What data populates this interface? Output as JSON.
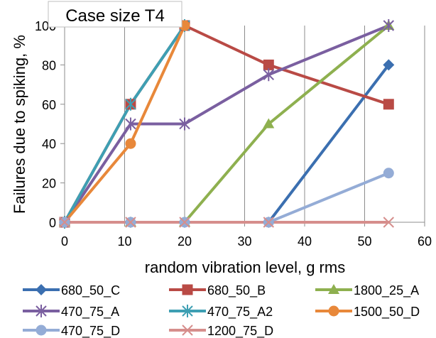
{
  "chart_data": {
    "type": "line",
    "title": "Case size T4",
    "xlabel": "random vibration level, g rms",
    "ylabel": "Failures due to spiking, %",
    "xlim": [
      0,
      60
    ],
    "ylim": [
      0,
      100
    ],
    "xticks": [
      0,
      10,
      20,
      30,
      40,
      50,
      60
    ],
    "yticks": [
      0,
      20,
      40,
      60,
      80,
      100
    ],
    "grid": "vertical only",
    "legend_position": "bottom",
    "series": [
      {
        "name": "680_50_C",
        "color": "#3b6fb0",
        "marker": "diamond",
        "x": [
          0,
          11,
          20,
          34,
          54
        ],
        "y": [
          0,
          0,
          0,
          0,
          80
        ]
      },
      {
        "name": "680_50_B",
        "color": "#b94a45",
        "marker": "square",
        "x": [
          0,
          11,
          20,
          34,
          54
        ],
        "y": [
          0,
          60,
          100,
          80,
          60
        ]
      },
      {
        "name": "1800_25_A",
        "color": "#8eb04f",
        "marker": "triangle",
        "x": [
          0,
          11,
          20,
          34,
          54
        ],
        "y": [
          0,
          0,
          0,
          50,
          100
        ]
      },
      {
        "name": "470_75_A",
        "color": "#7a5fa0",
        "marker": "asterisk",
        "x": [
          0,
          11,
          20,
          34,
          54
        ],
        "y": [
          0,
          50,
          50,
          75,
          100
        ]
      },
      {
        "name": "470_75_A2",
        "color": "#3e9fb3",
        "marker": "asterisk",
        "x": [
          0,
          11,
          20
        ],
        "y": [
          0,
          60,
          100
        ]
      },
      {
        "name": "1500_50_D",
        "color": "#e8883a",
        "marker": "circle",
        "x": [
          0,
          11,
          20
        ],
        "y": [
          0,
          40,
          100
        ]
      },
      {
        "name": "470_75_D",
        "color": "#94acd6",
        "marker": "circle",
        "x": [
          0,
          11,
          20,
          34,
          54
        ],
        "y": [
          0,
          0,
          0,
          0,
          25
        ]
      },
      {
        "name": "1200_75_D",
        "color": "#d68e8c",
        "marker": "x",
        "x": [
          0,
          11,
          20,
          34,
          54
        ],
        "y": [
          0,
          0,
          0,
          0,
          0
        ]
      }
    ]
  }
}
